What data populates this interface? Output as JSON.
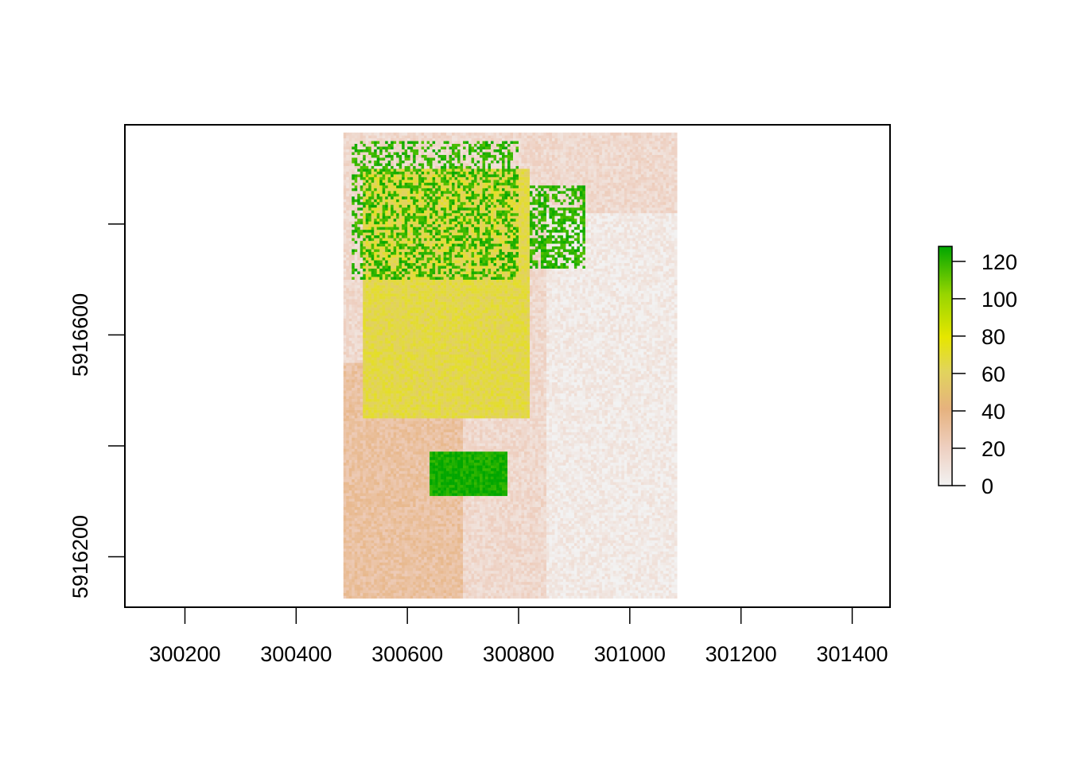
{
  "chart_data": {
    "type": "heatmap",
    "title": "",
    "xlabel": "",
    "ylabel": "",
    "x_range": [
      300092,
      301468
    ],
    "y_range": [
      5916109,
      5916979
    ],
    "x_ticks": [
      300200,
      300400,
      300600,
      300800,
      301000,
      301200,
      301400
    ],
    "x_tick_labels": [
      "300200",
      "300400",
      "300600",
      "300800",
      "301000",
      "301200",
      "301400"
    ],
    "y_ticks": [
      5916200,
      5916400,
      5916600,
      5916800
    ],
    "y_tick_labels": [
      "5916200",
      "",
      "5916600",
      ""
    ],
    "raster_extent": {
      "xmin": 300485,
      "xmax": 301085,
      "ymin": 5916125,
      "ymax": 5916965
    },
    "value_range": [
      0,
      128
    ],
    "colorbar": {
      "ticks": [
        0,
        20,
        40,
        60,
        80,
        100,
        120
      ],
      "tick_labels": [
        "0",
        "20",
        "40",
        "60",
        "80",
        "100",
        "120"
      ],
      "colors": [
        "#f2f2f2",
        "#eecfc0",
        "#e6b27e",
        "#e1d45c",
        "#e6e600",
        "#97d500",
        "#00a600"
      ]
    },
    "grid": false,
    "legend_position": "right",
    "regions": {
      "tree_cover_high_northwest": {
        "approx_value": 120,
        "x": [
          300500,
          300800
        ],
        "y": [
          5916700,
          5916950
        ]
      },
      "moderate_central": {
        "approx_value": 65,
        "x": [
          300520,
          300820
        ],
        "y": [
          5916450,
          5916900
        ]
      },
      "low_southwest": {
        "approx_value": 30,
        "x": [
          300485,
          300700
        ],
        "y": [
          5916125,
          5916550
        ]
      },
      "near_zero_east": {
        "approx_value": 5,
        "x": [
          300850,
          301085
        ],
        "y": [
          5916125,
          5916820
        ]
      },
      "high_south_patch": {
        "approx_value": 125,
        "x": [
          300640,
          300780
        ],
        "y": [
          5916310,
          5916390
        ]
      },
      "high_northeast_patch": {
        "approx_value": 120,
        "x": [
          300820,
          300920
        ],
        "y": [
          5916720,
          5916870
        ]
      }
    }
  }
}
